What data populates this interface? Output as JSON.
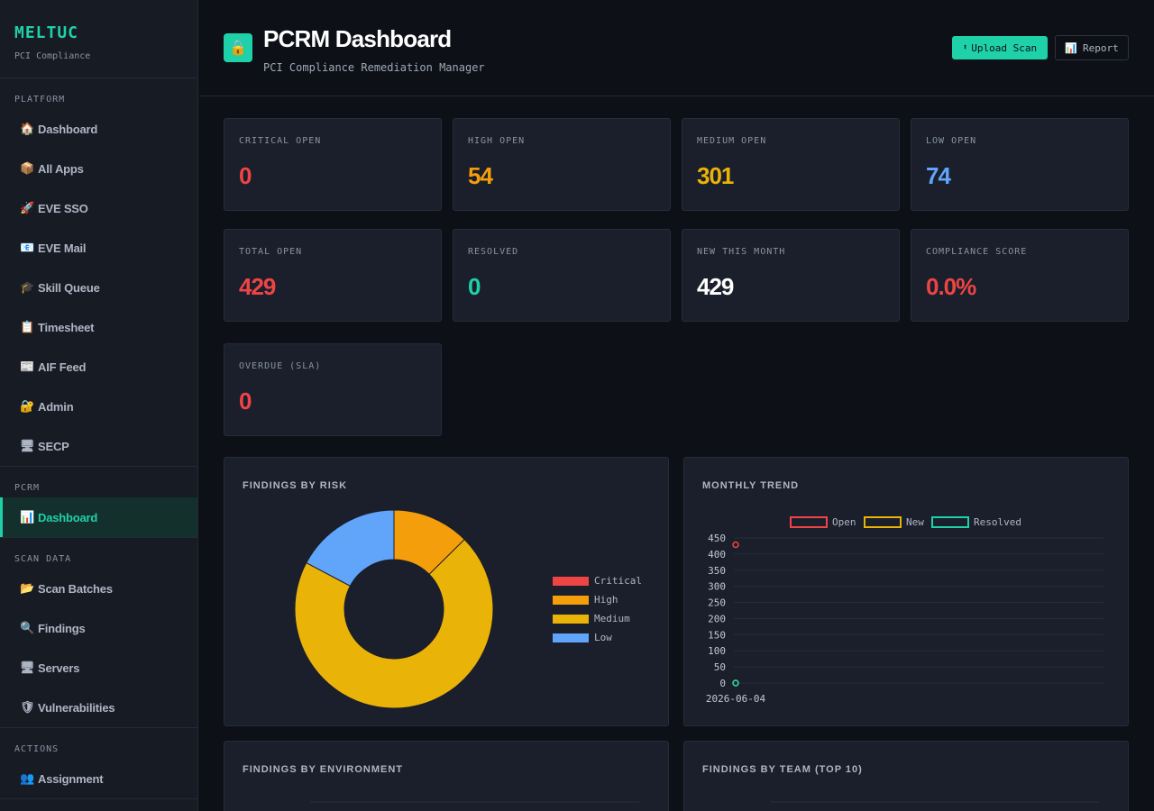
{
  "brand": {
    "name": "MELTUC",
    "subtitle": "PCI Compliance"
  },
  "sidebar": {
    "sections": [
      {
        "title": "PLATFORM",
        "items": [
          {
            "icon": "🏠",
            "icon_name": "house-icon",
            "label": "Dashboard"
          },
          {
            "icon": "📦",
            "icon_name": "package-icon",
            "label": "All Apps"
          },
          {
            "icon": "🚀",
            "icon_name": "rocket-icon",
            "label": "EVE SSO"
          },
          {
            "icon": "📧",
            "icon_name": "mail-icon",
            "label": "EVE Mail"
          },
          {
            "icon": "🎓",
            "icon_name": "graduation-cap-icon",
            "label": "Skill Queue"
          },
          {
            "icon": "📋",
            "icon_name": "clipboard-icon",
            "label": "Timesheet"
          },
          {
            "icon": "📰",
            "icon_name": "newspaper-icon",
            "label": "AIF Feed"
          },
          {
            "icon": "🔐",
            "icon_name": "lock-key-icon",
            "label": "Admin"
          },
          {
            "icon": "🖥",
            "icon_name": "monitor-icon",
            "label": "SECP"
          }
        ]
      },
      {
        "title": "PCRM",
        "items": [
          {
            "icon": "📊",
            "icon_name": "bar-chart-icon",
            "label": "Dashboard",
            "active": true
          }
        ]
      },
      {
        "title": "SCAN DATA",
        "items": [
          {
            "icon": "📂",
            "icon_name": "folder-icon",
            "label": "Scan Batches"
          },
          {
            "icon": "🔍",
            "icon_name": "magnifier-icon",
            "label": "Findings"
          },
          {
            "icon": "🖥",
            "icon_name": "monitor-icon",
            "label": "Servers"
          },
          {
            "icon": "🛡",
            "icon_name": "shield-icon",
            "label": "Vulnerabilities"
          }
        ]
      },
      {
        "title": "ACTIONS",
        "items": [
          {
            "icon": "👥",
            "icon_name": "people-icon",
            "label": "Assignment"
          }
        ]
      }
    ]
  },
  "header": {
    "icon": "🔒",
    "title": "PCRM Dashboard",
    "subtitle": "PCI Compliance Remediation Manager",
    "upload_icon": "⬆",
    "upload_label": "Upload Scan",
    "report_icon": "📊",
    "report_label": "Report"
  },
  "colors": {
    "accent": "#1fd1a8",
    "critical": "#ef4444",
    "high": "#f59e0b",
    "medium": "#eab308",
    "low": "#60a5fa",
    "white": "#ffffff"
  },
  "stats": [
    {
      "label": "CRITICAL OPEN",
      "value": "0",
      "color": "#ef4444"
    },
    {
      "label": "HIGH OPEN",
      "value": "54",
      "color": "#f59e0b"
    },
    {
      "label": "MEDIUM OPEN",
      "value": "301",
      "color": "#eab308"
    },
    {
      "label": "LOW OPEN",
      "value": "74",
      "color": "#60a5fa"
    },
    {
      "label": "TOTAL OPEN",
      "value": "429",
      "color": "#ef4444"
    },
    {
      "label": "RESOLVED",
      "value": "0",
      "color": "#1fd1a8"
    },
    {
      "label": "NEW THIS MONTH",
      "value": "429",
      "color": "#ffffff"
    },
    {
      "label": "COMPLIANCE SCORE",
      "value": "0.0%",
      "color": "#ef4444"
    },
    {
      "label": "OVERDUE (SLA)",
      "value": "0",
      "color": "#ef4444"
    }
  ],
  "panels": {
    "risk_title": "FINDINGS BY RISK",
    "trend_title": "MONTHLY TREND",
    "env_title": "FINDINGS BY ENVIRONMENT",
    "team_title": "FINDINGS BY TEAM (TOP 10)"
  },
  "chart_data": [
    {
      "type": "pie",
      "title": "FINDINGS BY RISK",
      "categories": [
        "Critical",
        "High",
        "Medium",
        "Low"
      ],
      "values": [
        0,
        54,
        301,
        74
      ],
      "colors": [
        "#ef4444",
        "#f59e0b",
        "#eab308",
        "#60a5fa"
      ],
      "donut": true,
      "legend": "right"
    },
    {
      "type": "line",
      "title": "MONTHLY TREND",
      "x": [
        "2026-06-04"
      ],
      "series": [
        {
          "name": "Open",
          "values": [
            429
          ],
          "color": "#ef4444"
        },
        {
          "name": "New",
          "values": [
            0
          ],
          "color": "#eab308"
        },
        {
          "name": "Resolved",
          "values": [
            0
          ],
          "color": "#1fd1a8"
        }
      ],
      "ylim": [
        0,
        450
      ],
      "yticks": [
        450,
        400,
        350,
        300,
        250,
        200,
        150,
        100,
        50,
        0
      ],
      "grid": true,
      "legend": "top"
    }
  ]
}
